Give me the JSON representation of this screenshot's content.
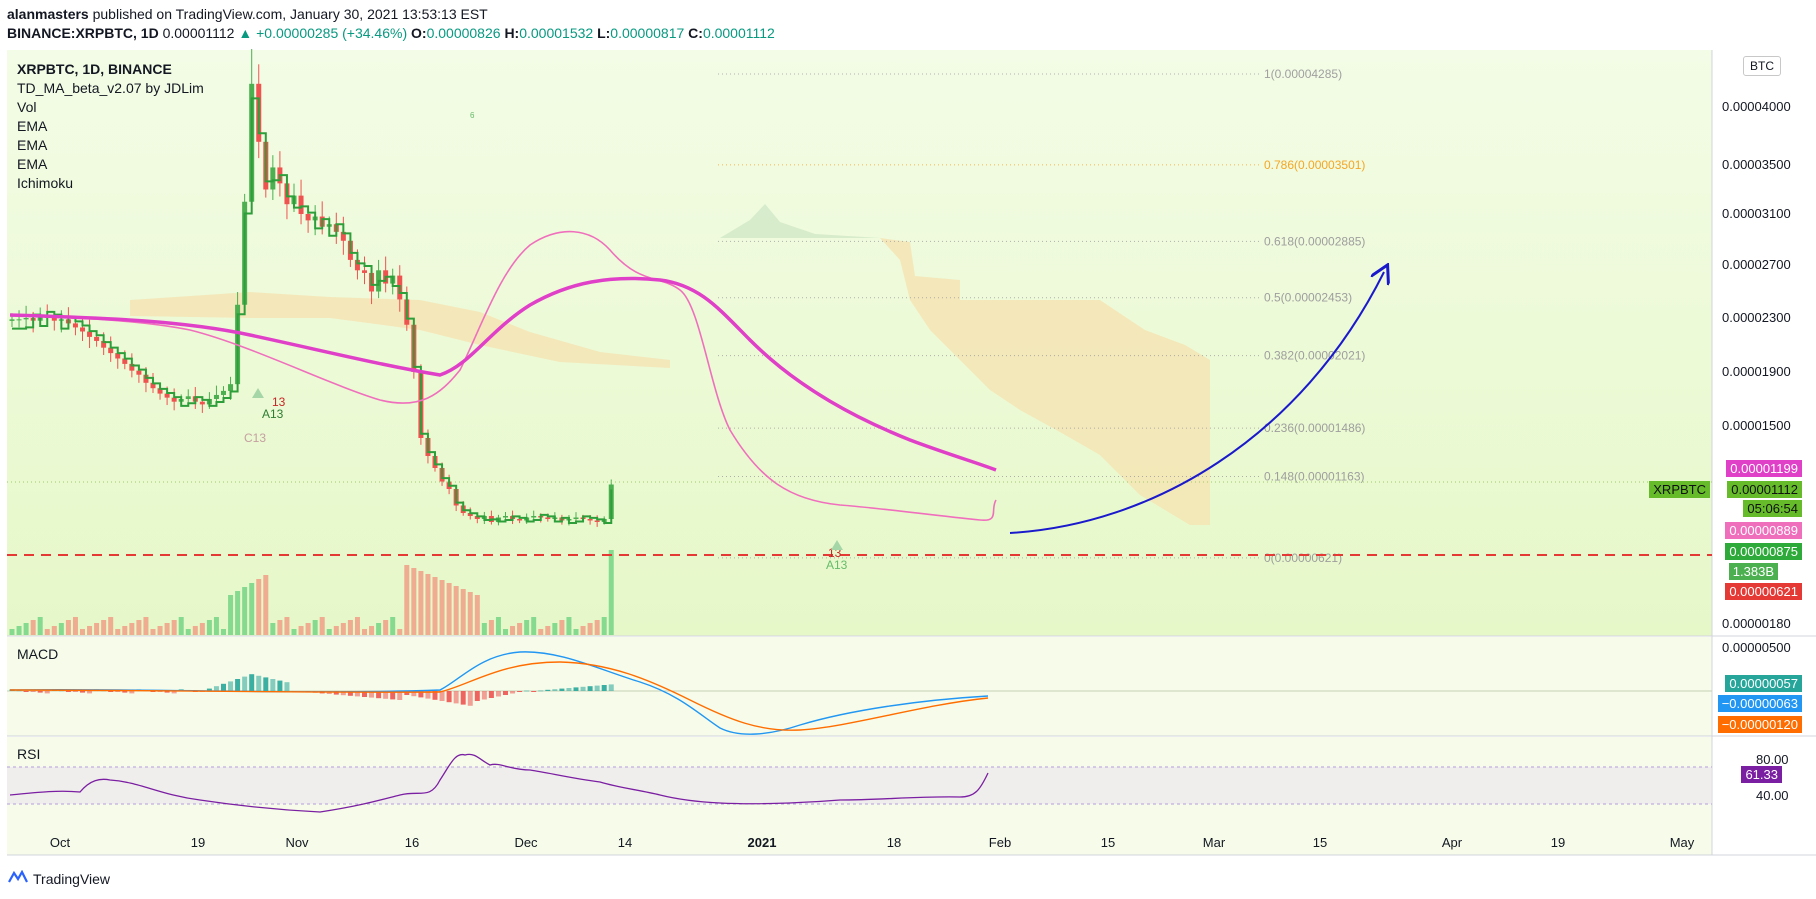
{
  "header": {
    "author": "alanmasters",
    "published": "published on TradingView.com, January 30, 2021 13:53:13 EST",
    "symbol": "BINANCE:XRPBTC, 1D",
    "last": "0.00001112",
    "change": "▲ +0.00000285 (+34.46%)",
    "o_label": "O:",
    "o": "0.00000826",
    "h_label": "H:",
    "h": "0.00001532",
    "l_label": "L:",
    "l": "0.00000817",
    "c_label": "C:",
    "c": "0.00001112"
  },
  "legend": {
    "title": "XRPBTC, 1D, BINANCE",
    "items": [
      "TD_MA_beta_v2.07 by JDLim",
      "Vol",
      "EMA",
      "EMA",
      "EMA",
      "Ichimoku"
    ]
  },
  "currency_label": "BTC",
  "price_labels": {
    "xrpbtc": "XRPBTC",
    "p1": "0.00001199",
    "p2": "0.00001112",
    "countdown": "05:06:54",
    "p3": "0.00000889",
    "p4": "0.00000875",
    "vol": "1.383B",
    "p5": "0.00000621"
  },
  "macd": {
    "title": "MACD",
    "v1": "0.00000057",
    "v2": "−0.00000063",
    "v3": "−0.00000120",
    "axis": "0.00000500"
  },
  "rsi": {
    "title": "RSI",
    "value": "61.33",
    "upper": "80.00",
    "lower": "40.00"
  },
  "footer": {
    "brand": "TradingView"
  },
  "colors": {
    "bull": "#4caf50",
    "bear": "#ef5350",
    "ema_fast": "#f06fbd",
    "ema_slow": "#e040c8",
    "td": "#2e9e3a",
    "cloud": "#f6e2b0",
    "bg_green": "#eefbd8",
    "arrow": "#1a1acc",
    "support": "#e53935",
    "macd": "#2196f3",
    "signal": "#ff6d00",
    "rsi": "#7b1fa2"
  },
  "chart_data": {
    "type": "candlestick",
    "symbol": "XRPBTC",
    "interval": "1D",
    "exchange": "BINANCE",
    "y_axis_ticks": [
      "0.00004000",
      "0.00003500",
      "0.00003100",
      "0.00002700",
      "0.00002300",
      "0.00001900",
      "0.00001500",
      "0.00000180"
    ],
    "x_axis_ticks": [
      "Oct",
      "19",
      "Nov",
      "16",
      "Dec",
      "14",
      "2021",
      "18",
      "Feb",
      "15",
      "Mar",
      "15",
      "Apr",
      "19",
      "May"
    ],
    "fib_levels": [
      {
        "label": "1(0.00004285)",
        "price": 4.285e-05
      },
      {
        "label": "0.786(0.00003501)",
        "price": 3.501e-05
      },
      {
        "label": "0.618(0.00002885)",
        "price": 2.885e-05
      },
      {
        "label": "0.5(0.00002453)",
        "price": 2.453e-05
      },
      {
        "label": "0.382(0.00002021)",
        "price": 2.021e-05
      },
      {
        "label": "0.236(0.00001486)",
        "price": 1.486e-05
      },
      {
        "label": "0.148(0.00001163)",
        "price": 1.163e-05
      },
      {
        "label": "0(0.00000621)",
        "price": 6.21e-06
      }
    ],
    "support_level": 6.21e-06,
    "price_path": [
      2.29e-05,
      2.29e-05,
      2.3e-05,
      2.28e-05,
      2.31e-05,
      2.3e-05,
      2.28e-05,
      2.29e-05,
      2.26e-05,
      2.23e-05,
      2.2e-05,
      2.16e-05,
      2.13e-05,
      2.08e-05,
      2.04e-05,
      2e-05,
      1.96e-05,
      1.91e-05,
      1.88e-05,
      1.82e-05,
      1.78e-05,
      1.74e-05,
      1.71e-05,
      1.68e-05,
      1.7e-05,
      1.72e-05,
      1.68e-05,
      1.66e-05,
      1.7e-05,
      1.73e-05,
      1.76e-05,
      1.81e-05,
      2.4e-05,
      3.2e-05,
      4.2e-05,
      3.7e-05,
      3.3e-05,
      3.48e-05,
      3.35e-05,
      3.18e-05,
      3.25e-05,
      3.1e-05,
      3.05e-05,
      3.08e-05,
      3e-05,
      3.02e-05,
      2.96e-05,
      2.89e-05,
      2.74e-05,
      2.66e-05,
      2.64e-05,
      2.5e-05,
      2.66e-05,
      2.56e-05,
      2.62e-05,
      2.44e-05,
      2.25e-05,
      1.9e-05,
      1.42e-05,
      1.3e-05,
      1.22e-05,
      1.13e-05,
      1.08e-05,
      9.7e-06,
      9.2e-06,
      9e-06,
      8.8e-06,
      9e-06,
      8.6e-06,
      8.9e-06,
      9e-06,
      8.8e-06,
      8.7e-06,
      8.9e-06,
      9e-06,
      8.9e-06,
      8.8e-06,
      8.9e-06,
      8.7e-06,
      8.8e-06,
      8.9e-06,
      8.8e-06,
      8.7e-06,
      8.6e-06,
      8.8e-06,
      1.11e-05
    ]
  }
}
